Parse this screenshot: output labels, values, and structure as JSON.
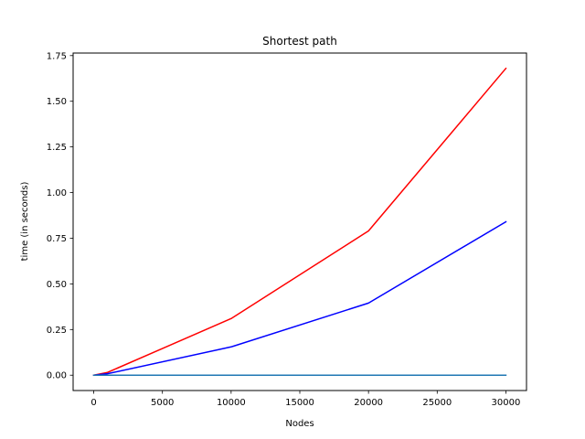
{
  "chart_data": {
    "type": "line",
    "title": "Shortest path",
    "xlabel": "Nodes",
    "ylabel": "time (in seconds)",
    "xlim": [
      -1500,
      31500
    ],
    "ylim": [
      -0.084,
      1.764
    ],
    "xticks": [
      0,
      5000,
      10000,
      15000,
      20000,
      25000,
      30000
    ],
    "yticks": [
      0.0,
      0.25,
      0.5,
      0.75,
      1.0,
      1.25,
      1.5,
      1.75
    ],
    "xtick_labels": [
      "0",
      "5000",
      "10000",
      "15000",
      "20000",
      "25000",
      "30000"
    ],
    "ytick_labels": [
      "0.00",
      "0.25",
      "0.50",
      "0.75",
      "1.00",
      "1.25",
      "1.50",
      "1.75"
    ],
    "grid": false,
    "legend": false,
    "series": [
      {
        "color": "#ff0000",
        "x": [
          0,
          1000,
          10000,
          20000,
          30000
        ],
        "y": [
          0.0,
          0.015,
          0.31,
          0.79,
          1.68
        ]
      },
      {
        "color": "#0000ff",
        "x": [
          0,
          1000,
          10000,
          20000,
          30000
        ],
        "y": [
          0.0,
          0.008,
          0.155,
          0.395,
          0.84
        ]
      },
      {
        "color": "#1f77b4",
        "x": [
          0,
          1000,
          10000,
          20000,
          30000
        ],
        "y": [
          0.0,
          0.0,
          0.0,
          0.0,
          0.0
        ]
      }
    ]
  }
}
